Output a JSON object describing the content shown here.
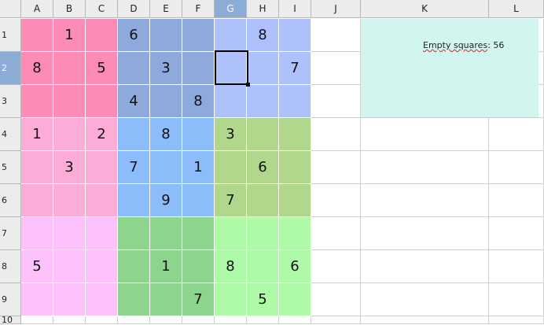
{
  "spreadsheet": {
    "columns": [
      "A",
      "B",
      "C",
      "D",
      "E",
      "F",
      "G",
      "H",
      "I",
      "J",
      "K",
      "L"
    ],
    "rows": [
      "1",
      "2",
      "3",
      "4",
      "5",
      "6",
      "7",
      "8",
      "9",
      "10"
    ],
    "selected_cell": {
      "column": "G",
      "row": "2"
    },
    "sudoku": [
      [
        "",
        "1",
        "",
        "6",
        "",
        "",
        "",
        "8",
        ""
      ],
      [
        "8",
        "",
        "5",
        "",
        "3",
        "",
        "",
        "",
        "7"
      ],
      [
        "",
        "",
        "",
        "4",
        "",
        "8",
        "",
        "",
        ""
      ],
      [
        "1",
        "",
        "2",
        "",
        "8",
        "",
        "3",
        "",
        ""
      ],
      [
        "",
        "3",
        "",
        "7",
        "",
        "1",
        "",
        "6",
        ""
      ],
      [
        "",
        "",
        "",
        "",
        "9",
        "",
        "7",
        "",
        ""
      ],
      [
        "",
        "",
        "",
        "",
        "",
        "",
        "",
        "",
        ""
      ],
      [
        "5",
        "",
        "",
        "",
        "1",
        "",
        "8",
        "",
        "6"
      ],
      [
        "",
        "",
        "",
        "",
        "",
        "7",
        "",
        "5",
        ""
      ]
    ],
    "box_colors": [
      [
        "#fd8bb8",
        "#8eaadc",
        "#afc1fa"
      ],
      [
        "#fcacd6",
        "#8dbcfa",
        "#b1d78d"
      ],
      [
        "#fdc1fb",
        "#8dd58d",
        "#aefaa9"
      ]
    ],
    "info_box": {
      "label": "Empty squares",
      "separator": ": ",
      "value": "56"
    }
  },
  "colors": {
    "header_bg": "#ececec",
    "header_selected": "#8cacd6",
    "info_bg": "#d2f6ef"
  }
}
